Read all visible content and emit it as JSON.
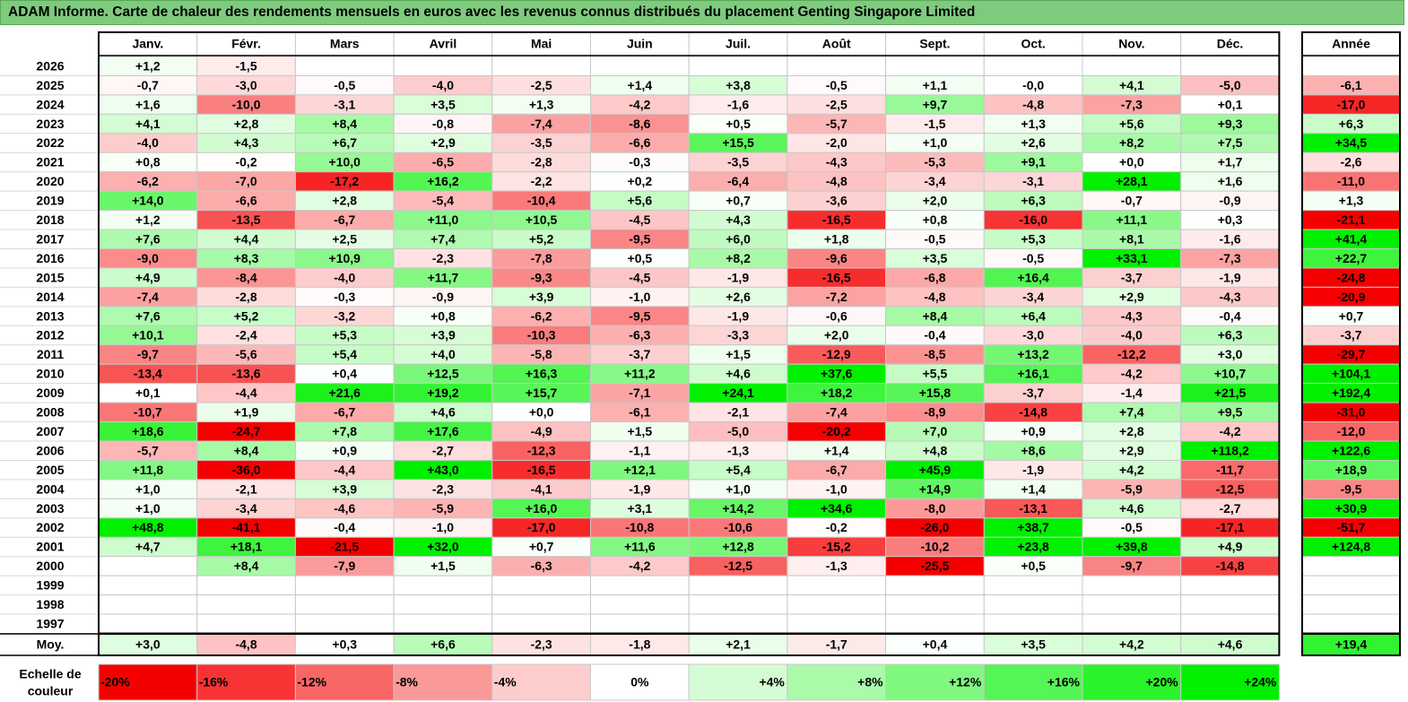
{
  "title": "ADAM Informe. Carte de chaleur des rendements mensuels en euros avec les revenus connus distribués du placement Genting Singapore Limited",
  "chart_data": {
    "type": "heatmap",
    "months": [
      "Janv.",
      "Févr.",
      "Mars",
      "Avril",
      "Mai",
      "Juin",
      "Juil.",
      "Août",
      "Sept.",
      "Oct.",
      "Nov.",
      "Déc."
    ],
    "year_label": "Année",
    "rows": [
      {
        "year": "2026",
        "values": [
          "+1,2",
          "-1,5",
          "",
          "",
          "",
          "",
          "",
          "",
          "",
          "",
          "",
          ""
        ],
        "annual": ""
      },
      {
        "year": "2025",
        "values": [
          "-0,7",
          "-3,0",
          "-0,5",
          "-4,0",
          "-2,5",
          "+1,4",
          "+3,8",
          "-0,5",
          "+1,1",
          "-0,0",
          "+4,1",
          "-5,0"
        ],
        "annual": "-6,1"
      },
      {
        "year": "2024",
        "values": [
          "+1,6",
          "-10,0",
          "-3,1",
          "+3,5",
          "+1,3",
          "-4,2",
          "-1,6",
          "-2,5",
          "+9,7",
          "-4,8",
          "-7,3",
          "+0,1"
        ],
        "annual": "-17,0"
      },
      {
        "year": "2023",
        "values": [
          "+4,1",
          "+2,8",
          "+8,4",
          "-0,8",
          "-7,4",
          "-8,6",
          "+0,5",
          "-5,7",
          "-1,5",
          "+1,3",
          "+5,6",
          "+9,3"
        ],
        "annual": "+6,3"
      },
      {
        "year": "2022",
        "values": [
          "-4,0",
          "+4,3",
          "+6,7",
          "+2,9",
          "-3,5",
          "-6,6",
          "+15,5",
          "-2,0",
          "+1,0",
          "+2,6",
          "+8,2",
          "+7,5"
        ],
        "annual": "+34,5"
      },
      {
        "year": "2021",
        "values": [
          "+0,8",
          "-0,2",
          "+10,0",
          "-6,5",
          "-2,8",
          "-0,3",
          "-3,5",
          "-4,3",
          "-5,3",
          "+9,1",
          "+0,0",
          "+1,7"
        ],
        "annual": "-2,6"
      },
      {
        "year": "2020",
        "values": [
          "-6,2",
          "-7,0",
          "-17,2",
          "+16,2",
          "-2,2",
          "+0,2",
          "-6,4",
          "-4,8",
          "-3,4",
          "-3,1",
          "+28,1",
          "+1,6"
        ],
        "annual": "-11,0"
      },
      {
        "year": "2019",
        "values": [
          "+14,0",
          "-6,6",
          "+2,8",
          "-5,4",
          "-10,4",
          "+5,6",
          "+0,7",
          "-3,6",
          "+2,0",
          "+6,3",
          "-0,7",
          "-0,9"
        ],
        "annual": "+1,3"
      },
      {
        "year": "2018",
        "values": [
          "+1,2",
          "-13,5",
          "-6,7",
          "+11,0",
          "+10,5",
          "-4,5",
          "+4,3",
          "-16,5",
          "+0,8",
          "-16,0",
          "+11,1",
          "+0,3"
        ],
        "annual": "-21,1"
      },
      {
        "year": "2017",
        "values": [
          "+7,6",
          "+4,4",
          "+2,5",
          "+7,4",
          "+5,2",
          "-9,5",
          "+6,0",
          "+1,8",
          "-0,5",
          "+5,3",
          "+8,1",
          "-1,6"
        ],
        "annual": "+41,4"
      },
      {
        "year": "2016",
        "values": [
          "-9,0",
          "+8,3",
          "+10,9",
          "-2,3",
          "-7,8",
          "+0,5",
          "+8,2",
          "-9,6",
          "+3,5",
          "-0,5",
          "+33,1",
          "-7,3"
        ],
        "annual": "+22,7"
      },
      {
        "year": "2015",
        "values": [
          "+4,9",
          "-8,4",
          "-4,0",
          "+11,7",
          "-9,3",
          "-4,5",
          "-1,9",
          "-16,5",
          "-6,8",
          "+16,4",
          "-3,7",
          "-1,9"
        ],
        "annual": "-24,8"
      },
      {
        "year": "2014",
        "values": [
          "-7,4",
          "-2,8",
          "-0,3",
          "-0,9",
          "+3,9",
          "-1,0",
          "+2,6",
          "-7,2",
          "-4,8",
          "-3,4",
          "+2,9",
          "-4,3"
        ],
        "annual": "-20,9"
      },
      {
        "year": "2013",
        "values": [
          "+7,6",
          "+5,2",
          "-3,2",
          "+0,8",
          "-6,2",
          "-9,5",
          "-1,9",
          "-0,6",
          "+8,4",
          "+6,4",
          "-4,3",
          "-0,4"
        ],
        "annual": "+0,7"
      },
      {
        "year": "2012",
        "values": [
          "+10,1",
          "-2,4",
          "+5,3",
          "+3,9",
          "-10,3",
          "-6,3",
          "-3,3",
          "+2,0",
          "-0,4",
          "-3,0",
          "-4,0",
          "+6,3"
        ],
        "annual": "-3,7"
      },
      {
        "year": "2011",
        "values": [
          "-9,7",
          "-5,6",
          "+5,4",
          "+4,0",
          "-5,8",
          "-3,7",
          "+1,5",
          "-12,9",
          "-8,5",
          "+13,2",
          "-12,2",
          "+3,0"
        ],
        "annual": "-29,7"
      },
      {
        "year": "2010",
        "values": [
          "-13,4",
          "-13,6",
          "+0,4",
          "+12,5",
          "+16,3",
          "+11,2",
          "+4,6",
          "+37,6",
          "+5,5",
          "+16,1",
          "-4,2",
          "+10,7"
        ],
        "annual": "+104,1"
      },
      {
        "year": "2009",
        "values": [
          "+0,1",
          "-4,4",
          "+21,6",
          "+19,2",
          "+15,7",
          "-7,1",
          "+24,1",
          "+18,2",
          "+15,8",
          "-3,7",
          "-1,4",
          "+21,5"
        ],
        "annual": "+192,4"
      },
      {
        "year": "2008",
        "values": [
          "-10,7",
          "+1,9",
          "-6,7",
          "+4,6",
          "+0,0",
          "-6,1",
          "-2,1",
          "-7,4",
          "-8,9",
          "-14,8",
          "+7,4",
          "+9,5"
        ],
        "annual": "-31,0"
      },
      {
        "year": "2007",
        "values": [
          "+18,6",
          "-24,7",
          "+7,8",
          "+17,6",
          "-4,9",
          "+1,5",
          "-5,0",
          "-20,2",
          "+7,0",
          "+0,9",
          "+2,8",
          "-4,2"
        ],
        "annual": "-12,0"
      },
      {
        "year": "2006",
        "values": [
          "-5,7",
          "+8,4",
          "+0,9",
          "-2,7",
          "-12,3",
          "-1,1",
          "-1,3",
          "+1,4",
          "+4,8",
          "+8,6",
          "+2,9",
          "+118,2"
        ],
        "annual": "+122,6"
      },
      {
        "year": "2005",
        "values": [
          "+11,8",
          "-36,0",
          "-4,4",
          "+43,0",
          "-16,5",
          "+12,1",
          "+5,4",
          "-6,7",
          "+45,9",
          "-1,9",
          "+4,2",
          "-11,7"
        ],
        "annual": "+18,9"
      },
      {
        "year": "2004",
        "values": [
          "+1,0",
          "-2,1",
          "+3,9",
          "-2,3",
          "-4,1",
          "-1,9",
          "+1,0",
          "-1,0",
          "+14,9",
          "+1,4",
          "-5,9",
          "-12,5"
        ],
        "annual": "-9,5"
      },
      {
        "year": "2003",
        "values": [
          "+1,0",
          "-3,4",
          "-4,6",
          "-5,9",
          "+16,0",
          "+3,1",
          "+14,2",
          "+34,6",
          "-8,0",
          "-13,1",
          "+4,6",
          "-2,7"
        ],
        "annual": "+30,9"
      },
      {
        "year": "2002",
        "values": [
          "+48,8",
          "-41,1",
          "-0,4",
          "-1,0",
          "-17,0",
          "-10,8",
          "-10,6",
          "-0,2",
          "-26,0",
          "+38,7",
          "-0,5",
          "-17,1"
        ],
        "annual": "-51,7"
      },
      {
        "year": "2001",
        "values": [
          "+4,7",
          "+18,1",
          "-21,5",
          "+32,0",
          "+0,7",
          "+11,6",
          "+12,8",
          "-15,2",
          "-10,2",
          "+23,8",
          "+39,8",
          "+4,9"
        ],
        "annual": "+124,8"
      },
      {
        "year": "2000",
        "values": [
          "",
          "+8,4",
          "-7,9",
          "+1,5",
          "-6,3",
          "-4,2",
          "-12,5",
          "-1,3",
          "-25,5",
          "+0,5",
          "-9,7",
          "-14,8"
        ],
        "annual": ""
      },
      {
        "year": "1999",
        "values": [
          "",
          "",
          "",
          "",
          "",
          "",
          "",
          "",
          "",
          "",
          "",
          ""
        ],
        "annual": ""
      },
      {
        "year": "1998",
        "values": [
          "",
          "",
          "",
          "",
          "",
          "",
          "",
          "",
          "",
          "",
          "",
          ""
        ],
        "annual": ""
      },
      {
        "year": "1997",
        "values": [
          "",
          "",
          "",
          "",
          "",
          "",
          "",
          "",
          "",
          "",
          "",
          ""
        ],
        "annual": ""
      }
    ],
    "average": {
      "label": "Moy.",
      "values": [
        "+3,0",
        "-4,8",
        "+0,3",
        "+6,6",
        "-2,3",
        "-1,8",
        "+2,1",
        "-1,7",
        "+0,4",
        "+3,5",
        "+4,2",
        "+4,6"
      ],
      "annual": "+19,4"
    },
    "scale": {
      "label": [
        "Echelle de",
        "couleur"
      ],
      "steps": [
        "-20%",
        "-16%",
        "-12%",
        "-8%",
        "-4%",
        "0%",
        "+4%",
        "+8%",
        "+12%",
        "+16%",
        "+20%",
        "+24%"
      ]
    }
  },
  "colors": {
    "title_bg": "#7ecb7e",
    "neg_strong": "#f50000",
    "neutral": "#ffffff",
    "pos_strong": "#00f000",
    "grid": "#c8c8c8",
    "frame": "#000000"
  }
}
